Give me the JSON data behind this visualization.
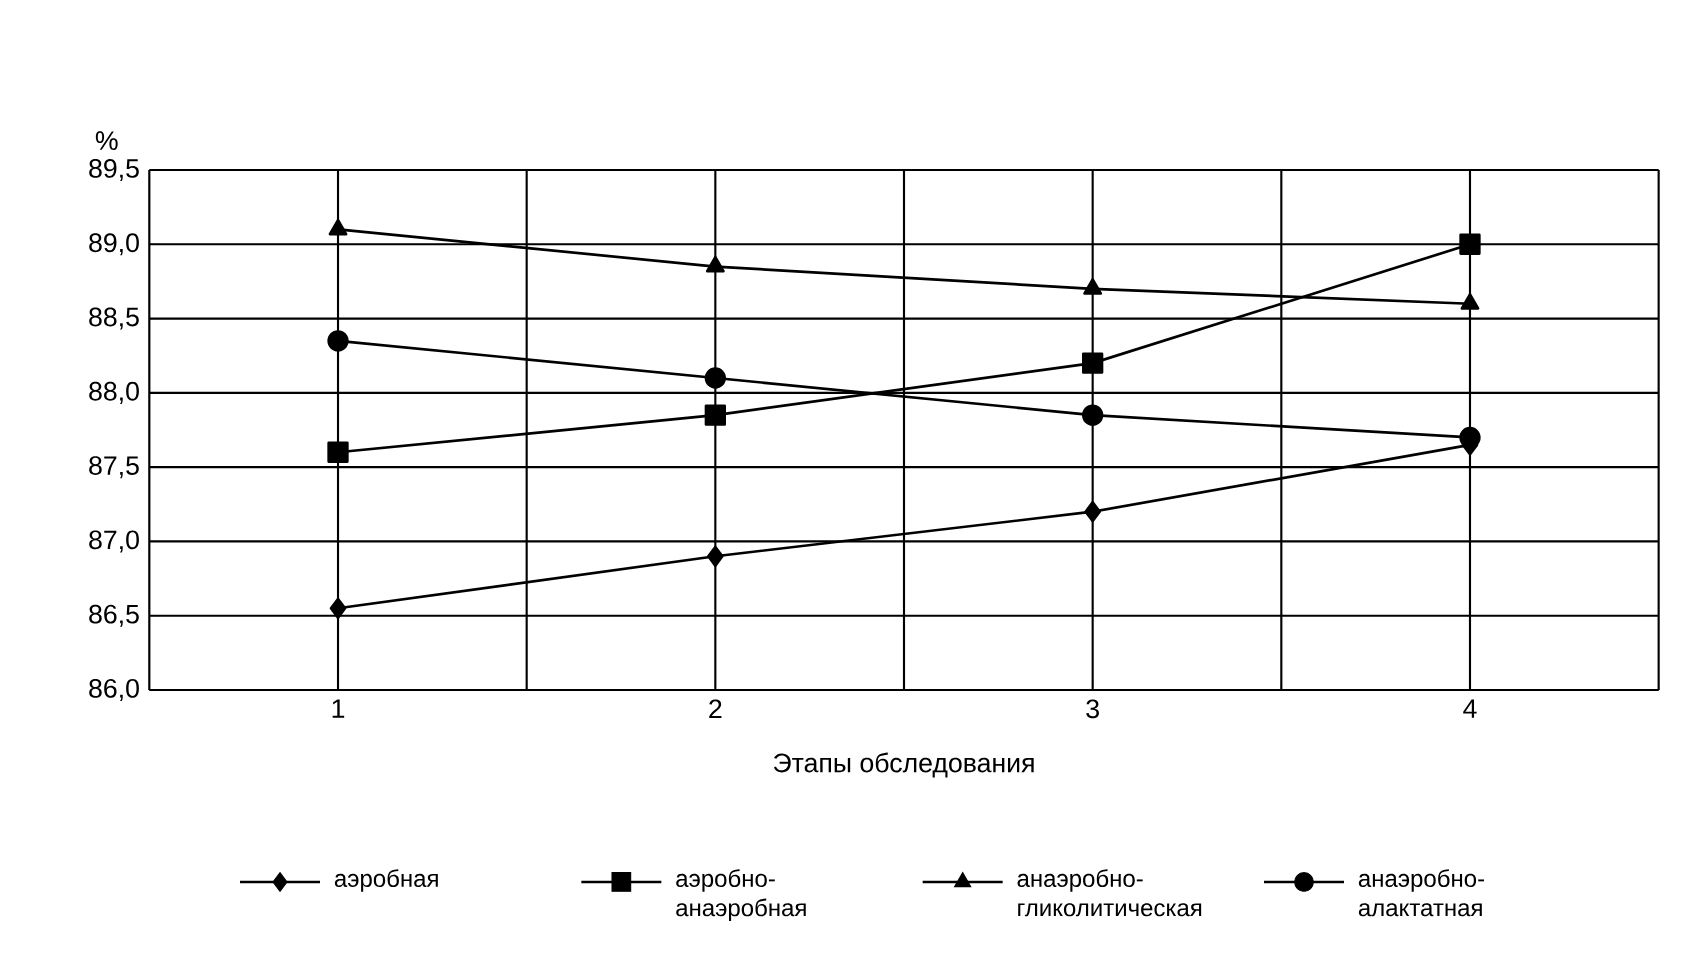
{
  "chart_data": {
    "type": "line",
    "ylabel": "%",
    "xlabel": "Этапы обследования",
    "categories": [
      "1",
      "2",
      "3",
      "4"
    ],
    "ylim": [
      86,
      89.5
    ],
    "yticks": [
      {
        "value": 86,
        "label": "86,0"
      },
      {
        "value": 86.5,
        "label": "86,5"
      },
      {
        "value": 87,
        "label": "87,0"
      },
      {
        "value": 87.5,
        "label": "87,5"
      },
      {
        "value": 88,
        "label": "88,0"
      },
      {
        "value": 88.5,
        "label": "88,5"
      },
      {
        "value": 89,
        "label": "89,0"
      },
      {
        "value": 89.5,
        "label": "89,5"
      }
    ],
    "grid": true,
    "legend": "bottom",
    "line_style": "solid",
    "series": [
      {
        "name": "аэробная",
        "color": "#000000",
        "marker": "diamond",
        "values": [
          86.55,
          86.9,
          87.2,
          87.65
        ]
      },
      {
        "name": "аэробно-анаэробная",
        "color": "#000000",
        "marker": "square",
        "values": [
          87.6,
          87.85,
          88.2,
          89.0
        ]
      },
      {
        "name": "анаэробно-гликолитическая",
        "color": "#000000",
        "marker": "triangle",
        "values": [
          89.1,
          88.85,
          88.7,
          88.6
        ]
      },
      {
        "name": "анаэробно-алактатная",
        "color": "#000000",
        "marker": "circle",
        "values": [
          88.35,
          88.1,
          87.85,
          87.7
        ]
      }
    ]
  }
}
